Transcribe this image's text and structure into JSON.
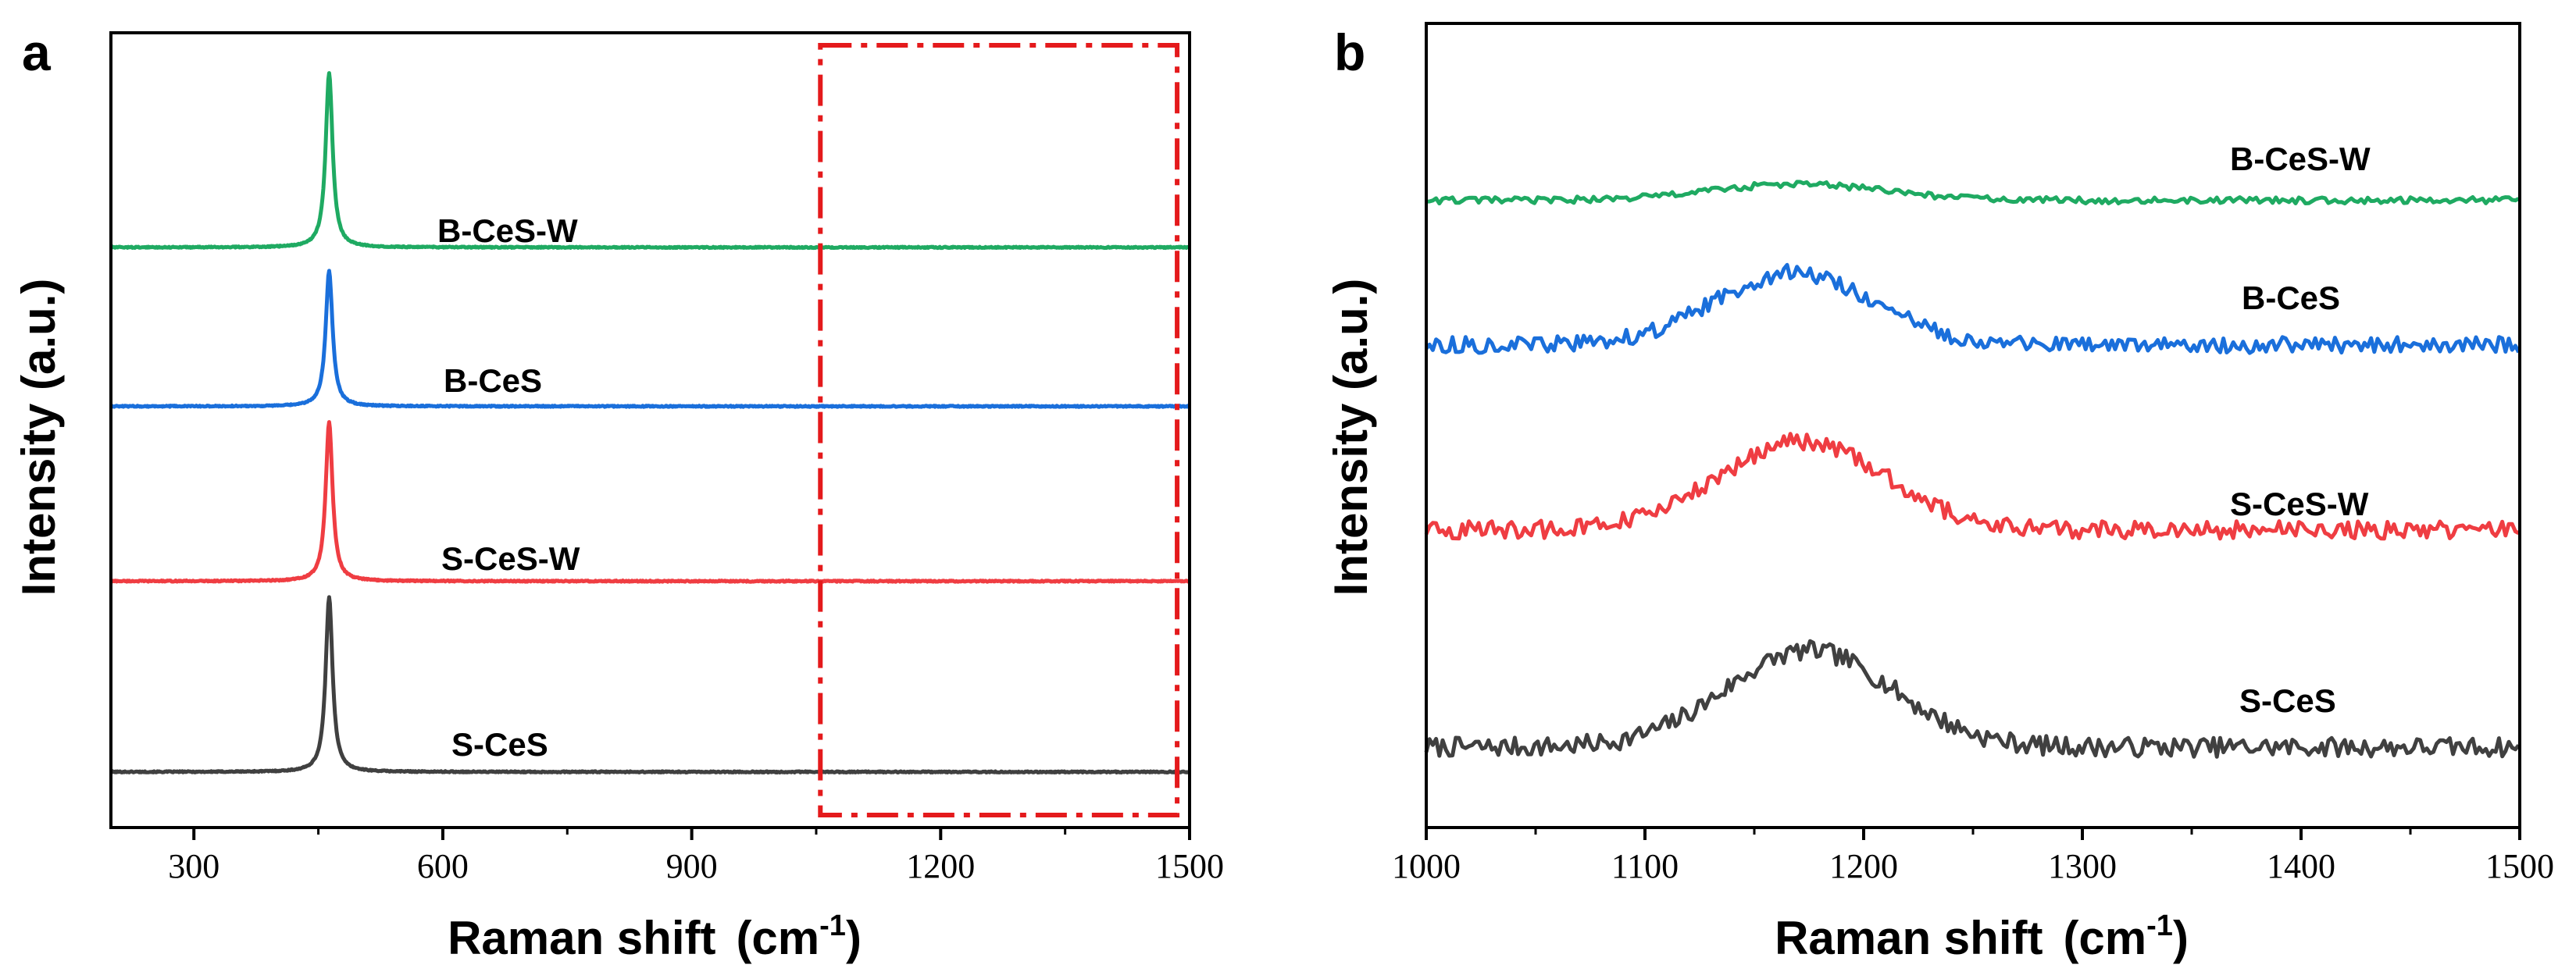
{
  "colors": {
    "S-CeS": "#404040",
    "S-CeS-W": "#ef3d42",
    "B-CeS": "#1a6fdb",
    "B-CeS-W": "#1faa62",
    "highlight_box": "#e41a1c"
  },
  "chart_data": [
    {
      "panel": "a",
      "type": "line",
      "xlabel_main": "Raman shift",
      "xlabel_unit_base": "(cm",
      "xlabel_unit_sup": "-1",
      "xlabel_unit_close": ")",
      "ylabel": "Intensity (a.u.)",
      "xlim": [
        200,
        1500
      ],
      "xticks": [
        300,
        600,
        900,
        1200,
        1500
      ],
      "xtick_labels": [
        "300",
        "600",
        "900",
        "1200",
        "1500"
      ],
      "peak_position": 463,
      "series": [
        {
          "name": "S-CeS",
          "baseline": 0.07,
          "peak_height": 0.22
        },
        {
          "name": "S-CeS-W",
          "baseline": 0.31,
          "peak_height": 0.2
        },
        {
          "name": "B-CeS",
          "baseline": 0.53,
          "peak_height": 0.17
        },
        {
          "name": "B-CeS-W",
          "baseline": 0.73,
          "peak_height": 0.22
        }
      ],
      "highlight_region": [
        1055,
        1485
      ],
      "y_ticks_shown": false
    },
    {
      "panel": "b",
      "type": "line",
      "xlabel_main": "Raman shift",
      "xlabel_unit_base": "(cm",
      "xlabel_unit_sup": "-1",
      "xlabel_unit_close": ")",
      "ylabel": "Intensity (a.u.)",
      "xlim": [
        1000,
        1500
      ],
      "xticks": [
        1000,
        1100,
        1200,
        1300,
        1400,
        1500
      ],
      "xtick_labels": [
        "1000",
        "1100",
        "1200",
        "1300",
        "1400",
        "1500"
      ],
      "series": [
        {
          "name": "S-CeS",
          "baseline": 0.1,
          "hump_height": 0.12,
          "hump_center": 1175,
          "hump_width": 38,
          "noise": 0.012
        },
        {
          "name": "S-CeS-W",
          "baseline": 0.37,
          "hump_height": 0.11,
          "hump_center": 1172,
          "hump_width": 38,
          "noise": 0.011
        },
        {
          "name": "B-CeS",
          "baseline": 0.6,
          "hump_height": 0.09,
          "hump_center": 1168,
          "hump_width": 36,
          "noise": 0.01
        },
        {
          "name": "B-CeS-W",
          "baseline": 0.78,
          "hump_height": 0.02,
          "hump_center": 1170,
          "hump_width": 40,
          "noise": 0.004
        }
      ],
      "y_ticks_shown": false
    }
  ]
}
